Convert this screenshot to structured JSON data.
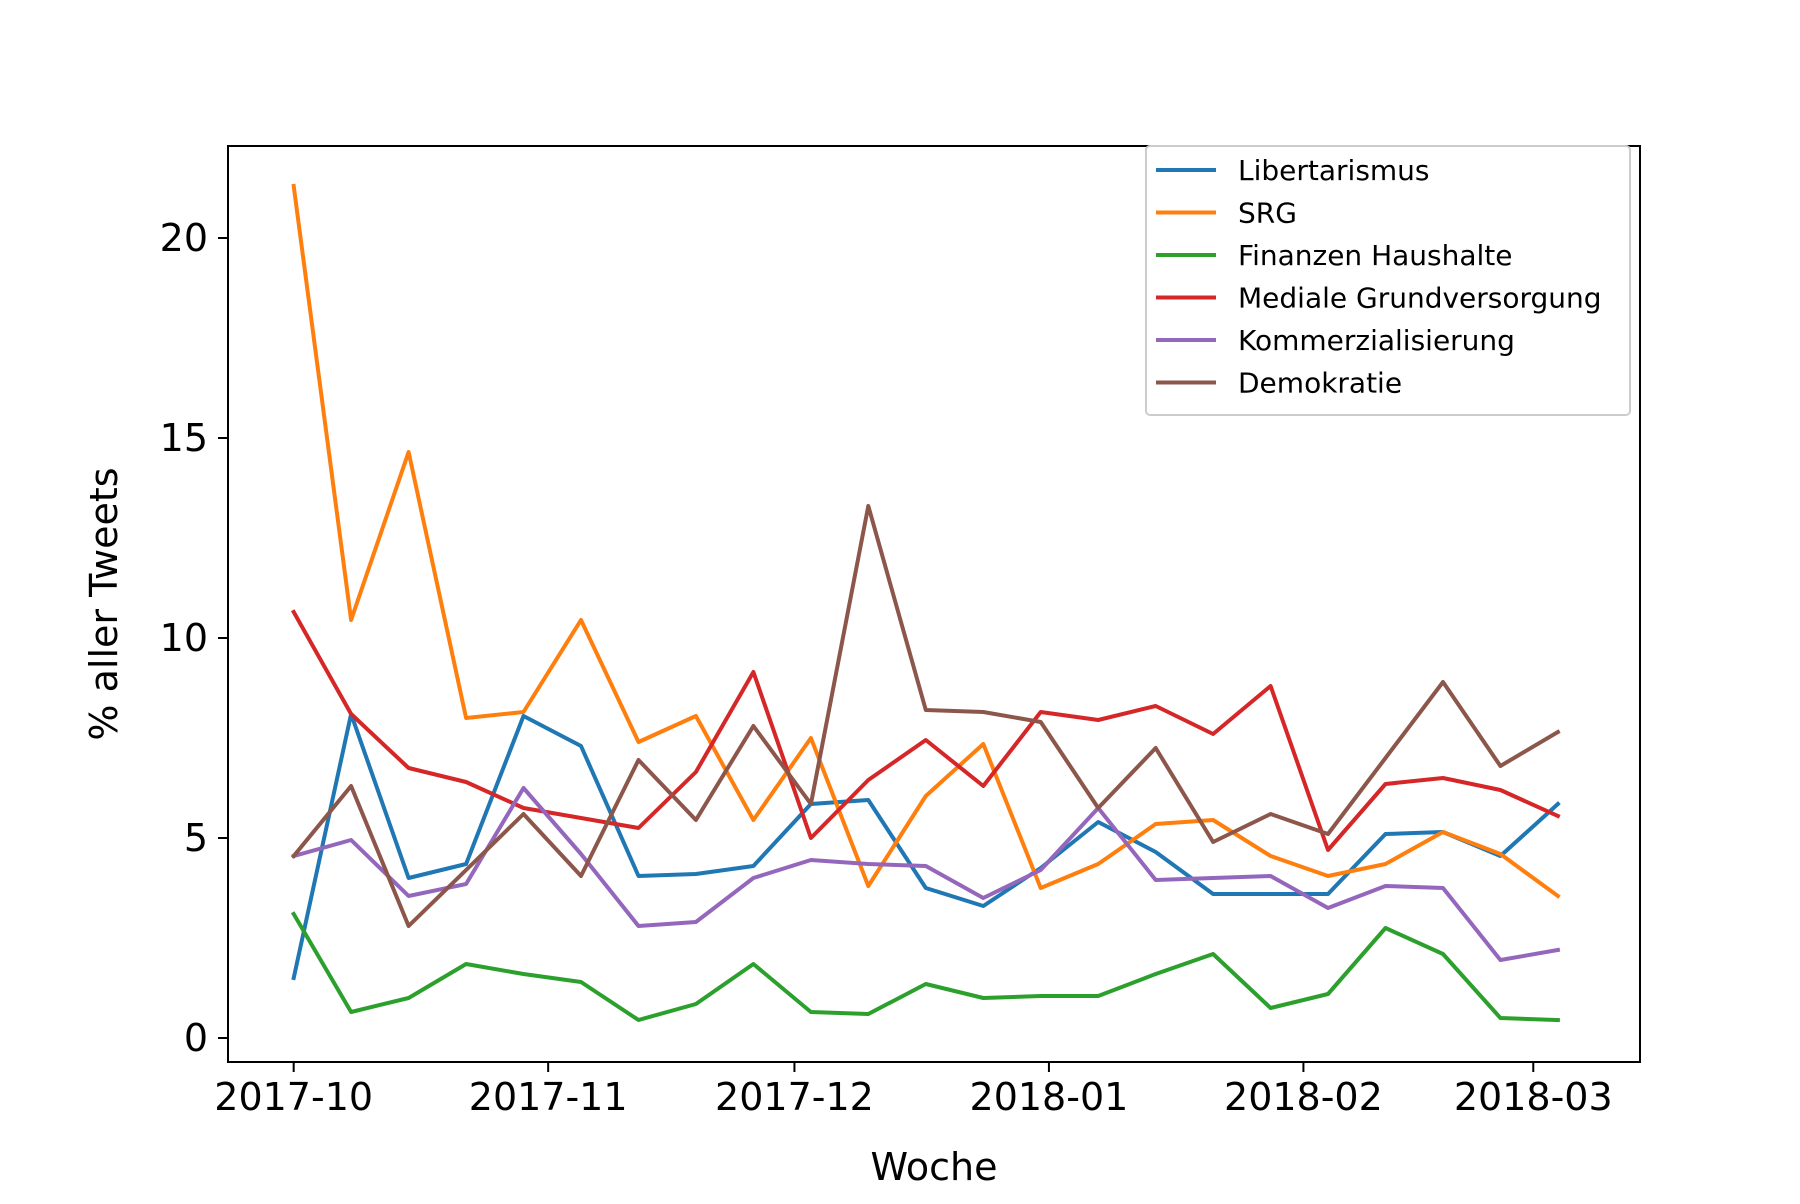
{
  "chart_data": {
    "type": "line",
    "xlabel": "Woche",
    "ylabel": "% aller Tweets",
    "x": [
      "2017-10-01",
      "2017-10-08",
      "2017-10-15",
      "2017-10-22",
      "2017-10-29",
      "2017-11-05",
      "2017-11-12",
      "2017-11-19",
      "2017-11-26",
      "2017-12-03",
      "2017-12-10",
      "2017-12-17",
      "2017-12-24",
      "2017-12-31",
      "2018-01-07",
      "2018-01-14",
      "2018-01-21",
      "2018-01-28",
      "2018-02-04",
      "2018-02-11",
      "2018-02-18",
      "2018-02-25",
      "2018-03-04"
    ],
    "xlim": [
      "2017-09-23",
      "2018-03-14"
    ],
    "ylim": [
      -0.6,
      22.3
    ],
    "x_ticks": [
      {
        "date": "2017-10-01",
        "label": "2017-10"
      },
      {
        "date": "2017-11-01",
        "label": "2017-11"
      },
      {
        "date": "2017-12-01",
        "label": "2017-12"
      },
      {
        "date": "2018-01-01",
        "label": "2018-01"
      },
      {
        "date": "2018-02-01",
        "label": "2018-02"
      },
      {
        "date": "2018-03-01",
        "label": "2018-03"
      }
    ],
    "y_ticks": [
      0,
      5,
      10,
      15,
      20
    ],
    "grid": false,
    "legend_position": "top-right",
    "series": [
      {
        "name": "Libertarismus",
        "color": "#1f77b4",
        "values": [
          1.5,
          8.1,
          4.0,
          4.35,
          8.05,
          7.3,
          4.05,
          4.1,
          4.3,
          5.85,
          5.95,
          3.75,
          3.3,
          4.25,
          5.4,
          4.65,
          3.6,
          3.6,
          3.6,
          5.1,
          5.15,
          4.55,
          5.85
        ]
      },
      {
        "name": "SRG",
        "color": "#ff7f0e",
        "values": [
          21.3,
          10.45,
          14.65,
          8.0,
          8.15,
          10.45,
          7.4,
          8.05,
          5.45,
          7.5,
          3.8,
          6.05,
          7.35,
          3.75,
          4.35,
          5.35,
          5.45,
          4.55,
          4.05,
          4.35,
          5.15,
          4.6,
          3.55
        ]
      },
      {
        "name": "Finanzen Haushalte",
        "color": "#2ca02c",
        "values": [
          3.1,
          0.65,
          1.0,
          1.85,
          1.6,
          1.4,
          0.45,
          0.85,
          1.85,
          0.65,
          0.6,
          1.35,
          1.0,
          1.05,
          1.05,
          1.6,
          2.1,
          0.75,
          1.1,
          2.75,
          2.1,
          0.5,
          0.45
        ]
      },
      {
        "name": "Mediale Grundversorgung",
        "color": "#d62728",
        "values": [
          10.65,
          8.1,
          6.75,
          6.4,
          5.75,
          5.5,
          5.25,
          6.65,
          9.15,
          5.0,
          6.45,
          7.45,
          6.3,
          8.15,
          7.95,
          8.3,
          7.6,
          8.8,
          4.7,
          6.35,
          6.5,
          6.2,
          5.55
        ]
      },
      {
        "name": "Kommerzialisierung",
        "color": "#9467bd",
        "values": [
          4.55,
          4.95,
          3.55,
          3.85,
          6.25,
          4.6,
          2.8,
          2.9,
          4.0,
          4.45,
          4.35,
          4.3,
          3.5,
          4.2,
          5.75,
          3.95,
          4.0,
          4.05,
          3.25,
          3.8,
          3.75,
          1.95,
          2.2
        ]
      },
      {
        "name": "Demokratie",
        "color": "#8c564b",
        "values": [
          4.55,
          6.3,
          2.8,
          4.2,
          5.6,
          4.05,
          6.95,
          5.45,
          7.8,
          5.85,
          13.3,
          8.2,
          8.15,
          7.9,
          5.75,
          7.25,
          4.9,
          5.6,
          5.1,
          7.0,
          8.9,
          6.8,
          7.65
        ]
      }
    ]
  }
}
